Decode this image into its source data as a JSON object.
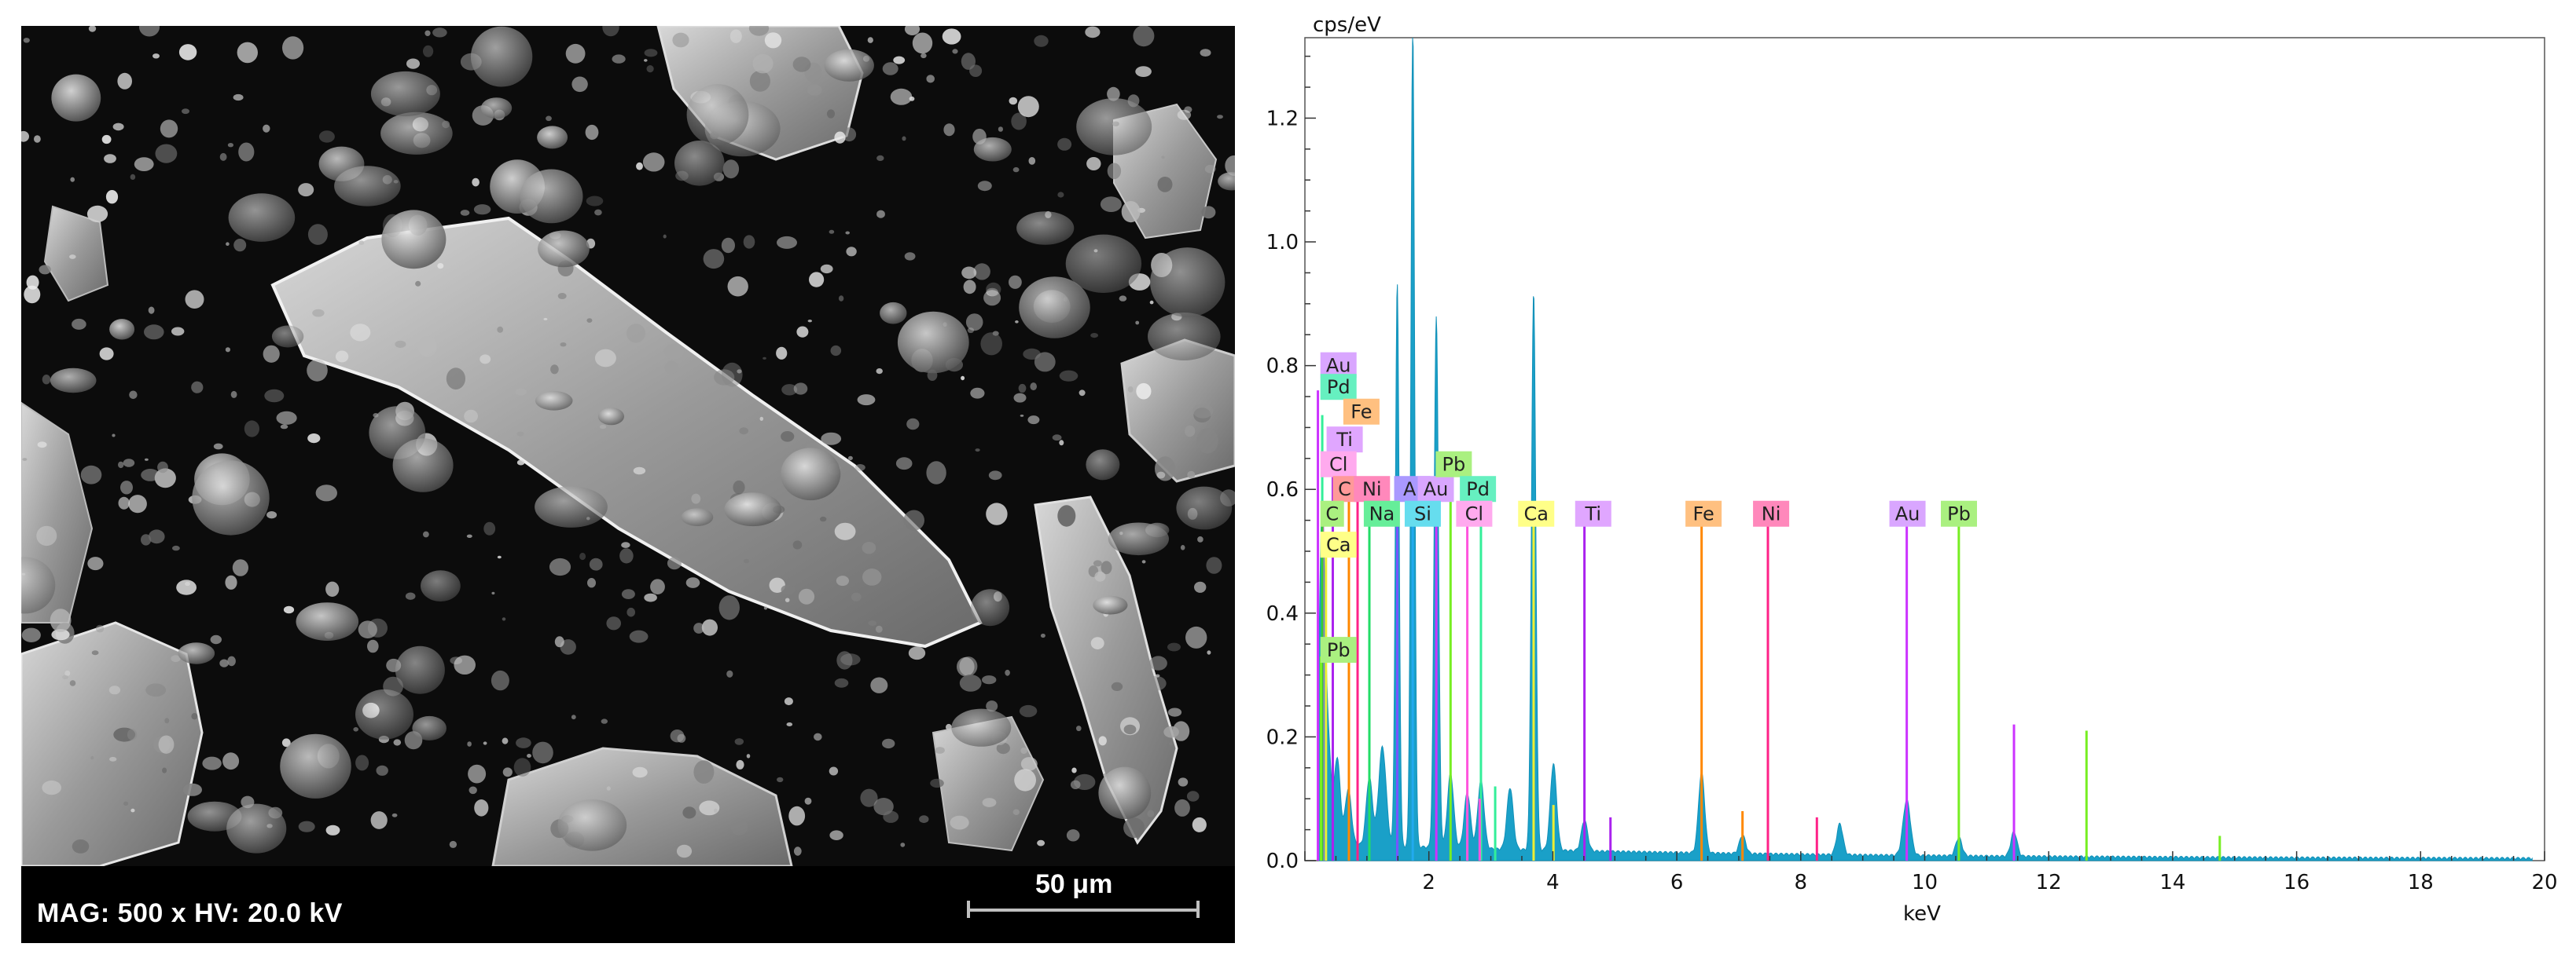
{
  "sem": {
    "info": "MAG: 500 x  HV: 20.0 kV",
    "scale_label": "50 μm"
  },
  "chart_data": {
    "type": "line",
    "ylabel": "cps/eV",
    "xlabel": "keV",
    "xlim": [
      0,
      20
    ],
    "ylim": [
      0,
      1.33
    ],
    "x_ticks": [
      2,
      4,
      6,
      8,
      10,
      12,
      14,
      16,
      18,
      20
    ],
    "y_ticks": [
      0.0,
      0.2,
      0.4,
      0.6,
      0.8,
      1.0,
      1.2
    ],
    "series_color": "#1aa0c8",
    "spectrum_peaks": [
      {
        "x": 0.28,
        "y": 0.55,
        "w": 0.05
      },
      {
        "x": 0.39,
        "y": 0.12,
        "w": 0.04
      },
      {
        "x": 0.52,
        "y": 0.14,
        "w": 0.05
      },
      {
        "x": 0.7,
        "y": 0.09,
        "w": 0.05
      },
      {
        "x": 1.04,
        "y": 0.11,
        "w": 0.05
      },
      {
        "x": 1.25,
        "y": 0.16,
        "w": 0.06
      },
      {
        "x": 1.49,
        "y": 0.91,
        "w": 0.03
      },
      {
        "x": 1.74,
        "y": 1.33,
        "w": 0.03
      },
      {
        "x": 2.12,
        "y": 0.86,
        "w": 0.035
      },
      {
        "x": 2.35,
        "y": 0.12,
        "w": 0.05
      },
      {
        "x": 2.62,
        "y": 0.09,
        "w": 0.05
      },
      {
        "x": 2.84,
        "y": 0.11,
        "w": 0.05
      },
      {
        "x": 3.31,
        "y": 0.1,
        "w": 0.05
      },
      {
        "x": 3.69,
        "y": 0.9,
        "w": 0.035
      },
      {
        "x": 4.01,
        "y": 0.14,
        "w": 0.05
      },
      {
        "x": 4.51,
        "y": 0.05,
        "w": 0.05
      },
      {
        "x": 6.4,
        "y": 0.13,
        "w": 0.05
      },
      {
        "x": 7.06,
        "y": 0.03,
        "w": 0.05
      },
      {
        "x": 8.63,
        "y": 0.05,
        "w": 0.05
      },
      {
        "x": 9.71,
        "y": 0.09,
        "w": 0.06
      },
      {
        "x": 10.55,
        "y": 0.03,
        "w": 0.05
      },
      {
        "x": 11.44,
        "y": 0.04,
        "w": 0.05
      }
    ],
    "element_lines": [
      {
        "label": "Au",
        "color": "#cc33ff",
        "lines": [
          {
            "x": 9.71,
            "y": 0.55
          },
          {
            "x": 2.12,
            "y": 0.58
          },
          {
            "x": 11.44,
            "y": 0.22
          },
          {
            "x": 0.21,
            "y": 0.76
          }
        ]
      },
      {
        "label": "Pd",
        "color": "#33ee99",
        "lines": [
          {
            "x": 2.84,
            "y": 0.55
          },
          {
            "x": 0.28,
            "y": 0.72
          },
          {
            "x": 3.07,
            "y": 0.12
          }
        ]
      },
      {
        "label": "Fe",
        "color": "#ff8800",
        "lines": [
          {
            "x": 6.4,
            "y": 0.55
          },
          {
            "x": 7.06,
            "y": 0.08
          },
          {
            "x": 0.71,
            "y": 0.68
          }
        ]
      },
      {
        "label": "Ti",
        "color": "#aa22ee",
        "lines": [
          {
            "x": 4.51,
            "y": 0.55
          },
          {
            "x": 4.93,
            "y": 0.07
          },
          {
            "x": 0.45,
            "y": 0.63
          }
        ]
      },
      {
        "label": "Cl",
        "color": "#ff55dd",
        "lines": [
          {
            "x": 2.62,
            "y": 0.55
          },
          {
            "x": 2.82,
            "y": 0.1
          },
          {
            "x": 0.29,
            "y": 0.58
          }
        ]
      },
      {
        "label": "C",
        "color": "#33cc33",
        "lines": [
          {
            "x": 0.28,
            "y": 0.55
          }
        ]
      },
      {
        "label": "Ca",
        "color": "#eeee33",
        "lines": [
          {
            "x": 3.69,
            "y": 0.55
          },
          {
            "x": 4.01,
            "y": 0.09
          },
          {
            "x": 0.34,
            "y": 0.5
          }
        ]
      },
      {
        "label": "Pb",
        "color": "#77ee22",
        "lines": [
          {
            "x": 10.55,
            "y": 0.55
          },
          {
            "x": 12.61,
            "y": 0.21
          },
          {
            "x": 2.35,
            "y": 0.6
          },
          {
            "x": 0.26,
            "y": 0.33
          },
          {
            "x": 14.76,
            "y": 0.04
          }
        ]
      },
      {
        "label": "Ni",
        "color": "#ff2288",
        "lines": [
          {
            "x": 7.47,
            "y": 0.55
          },
          {
            "x": 8.26,
            "y": 0.07
          },
          {
            "x": 0.85,
            "y": 0.58
          }
        ]
      },
      {
        "label": "Na",
        "color": "#22dd66",
        "lines": [
          {
            "x": 1.04,
            "y": 0.55
          }
        ]
      },
      {
        "label": "Al",
        "color": "#7755ff",
        "lines": [
          {
            "x": 1.49,
            "y": 0.58
          }
        ]
      },
      {
        "label": "Si",
        "color": "#22aaee",
        "lines": [
          {
            "x": 1.74,
            "y": 0.55
          }
        ]
      }
    ],
    "labels": [
      {
        "text": "Au",
        "x": 0.25,
        "y": 0.8,
        "color": "#d9a6ff"
      },
      {
        "text": "Pd",
        "x": 0.25,
        "y": 0.765,
        "color": "#66f0c0"
      },
      {
        "text": "Fe",
        "x": 0.62,
        "y": 0.725,
        "color": "#ffc080"
      },
      {
        "text": "Ti",
        "x": 0.35,
        "y": 0.68,
        "color": "#e0a6ff"
      },
      {
        "text": "Cl",
        "x": 0.25,
        "y": 0.64,
        "color": "#ffaaee"
      },
      {
        "text": "C",
        "x": 0.45,
        "y": 0.6,
        "color": "#ff9999"
      },
      {
        "text": "Ni",
        "x": 0.79,
        "y": 0.6,
        "color": "#ff88bb"
      },
      {
        "text": "Al",
        "x": 1.44,
        "y": 0.6,
        "color": "#aa99ff"
      },
      {
        "text": "Au",
        "x": 1.82,
        "y": 0.6,
        "color": "#d9a6ff"
      },
      {
        "text": "Pb",
        "x": 2.11,
        "y": 0.64,
        "color": "#aaf080"
      },
      {
        "text": "Pd",
        "x": 2.5,
        "y": 0.6,
        "color": "#66f0c0"
      },
      {
        "text": "C",
        "x": 0.25,
        "y": 0.56,
        "color": "#aaf080"
      },
      {
        "text": "Na",
        "x": 0.95,
        "y": 0.56,
        "color": "#66ee99"
      },
      {
        "text": "Si",
        "x": 1.61,
        "y": 0.56,
        "color": "#66ddee"
      },
      {
        "text": "Cl",
        "x": 2.44,
        "y": 0.56,
        "color": "#ffaaee"
      },
      {
        "text": "Ca",
        "x": 3.44,
        "y": 0.56,
        "color": "#ffff88"
      },
      {
        "text": "Ti",
        "x": 4.36,
        "y": 0.56,
        "color": "#e0a6ff"
      },
      {
        "text": "Fe",
        "x": 6.14,
        "y": 0.56,
        "color": "#ffc080"
      },
      {
        "text": "Ni",
        "x": 7.23,
        "y": 0.56,
        "color": "#ff88bb"
      },
      {
        "text": "Au",
        "x": 9.43,
        "y": 0.56,
        "color": "#d9a6ff"
      },
      {
        "text": "Pb",
        "x": 10.26,
        "y": 0.56,
        "color": "#aaf080"
      },
      {
        "text": "Ca",
        "x": 0.25,
        "y": 0.51,
        "color": "#ffff88"
      },
      {
        "text": "Pb",
        "x": 0.25,
        "y": 0.34,
        "color": "#aaf080"
      }
    ]
  }
}
